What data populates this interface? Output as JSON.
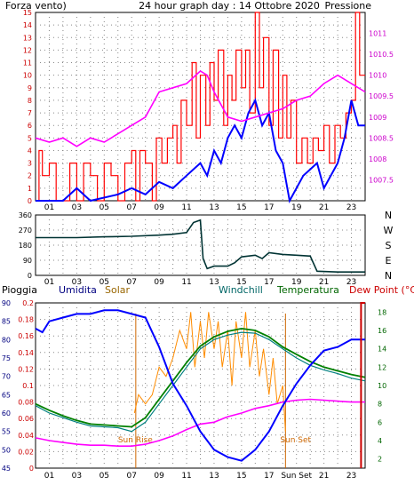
{
  "header": {
    "left_label": "Forza vento)",
    "title": "24 hour graph day : 14 Ottobre 2020",
    "right_label": "Pressione"
  },
  "bottom_header": {
    "pioggia": "Pioggia",
    "umidita": "Umidita",
    "solar": "Solar",
    "windchill": "Windchill",
    "temperatura": "Temperatura",
    "dewpoint": "Dew Point (°C)"
  },
  "colors": {
    "wind": "#ff0000",
    "gust_avg": "#0000ff",
    "pressure": "#ff00ff",
    "direction": "#003333",
    "humidity": "#0000ff",
    "solar": "#ff8c00",
    "windchill": "#008080",
    "temperature": "#008000",
    "dewpoint": "#ff00ff",
    "rain": "#cc0000",
    "sun": "#cc6600",
    "axis_red": "#cc0000",
    "axis_blue": "#000080",
    "axis_green": "#006600"
  },
  "chart_data": [
    {
      "type": "line",
      "ylim": [
        0,
        15
      ],
      "y_ticks": [
        "0",
        "1",
        "2",
        "3",
        "4",
        "5",
        "6",
        "7",
        "8",
        "9",
        "10",
        "11",
        "12",
        "13",
        "14",
        "15"
      ],
      "y2lim": [
        1007,
        1011.5
      ],
      "y2_ticks": [
        "1007.5",
        "1008",
        "1008.5",
        "1009",
        "1009.5",
        "1010",
        "1010.5",
        "1011"
      ],
      "x_ticks": [
        "01",
        "03",
        "05",
        "07",
        "09",
        "11",
        "13",
        "15",
        "17",
        "19",
        "21",
        "23"
      ],
      "xlim": [
        0,
        24
      ],
      "grid": true,
      "wind_max": [
        [
          0,
          0
        ],
        [
          0.25,
          4
        ],
        [
          0.5,
          2
        ],
        [
          1,
          3
        ],
        [
          1.5,
          0
        ],
        [
          2.5,
          3
        ],
        [
          3,
          0
        ],
        [
          3.5,
          3
        ],
        [
          4,
          2
        ],
        [
          4.5,
          0
        ],
        [
          5,
          3
        ],
        [
          5.5,
          2
        ],
        [
          6,
          0
        ],
        [
          6.5,
          3
        ],
        [
          7,
          4
        ],
        [
          7.3,
          0
        ],
        [
          7.6,
          4
        ],
        [
          8,
          3
        ],
        [
          8.5,
          0
        ],
        [
          8.8,
          5
        ],
        [
          9.2,
          3
        ],
        [
          9.6,
          5
        ],
        [
          10,
          6
        ],
        [
          10.3,
          3
        ],
        [
          10.6,
          8
        ],
        [
          11,
          6
        ],
        [
          11.4,
          11
        ],
        [
          11.7,
          5
        ],
        [
          12,
          10
        ],
        [
          12.4,
          6
        ],
        [
          12.7,
          11
        ],
        [
          13,
          8
        ],
        [
          13.3,
          12
        ],
        [
          13.7,
          6
        ],
        [
          14,
          10
        ],
        [
          14.3,
          8
        ],
        [
          14.6,
          12
        ],
        [
          15,
          9
        ],
        [
          15.3,
          12
        ],
        [
          15.6,
          7
        ],
        [
          16,
          15
        ],
        [
          16.3,
          9
        ],
        [
          16.6,
          13
        ],
        [
          17,
          6
        ],
        [
          17.3,
          12
        ],
        [
          17.7,
          5
        ],
        [
          18,
          10
        ],
        [
          18.3,
          5
        ],
        [
          18.6,
          8
        ],
        [
          19,
          3
        ],
        [
          19.4,
          5
        ],
        [
          19.8,
          3
        ],
        [
          20.2,
          5
        ],
        [
          20.6,
          4
        ],
        [
          21,
          6
        ],
        [
          21.4,
          3
        ],
        [
          21.8,
          6
        ],
        [
          22.2,
          5
        ],
        [
          22.6,
          7
        ],
        [
          23,
          8
        ],
        [
          23.3,
          15
        ],
        [
          23.6,
          10
        ],
        [
          24,
          10
        ]
      ],
      "wind_avg": [
        [
          0,
          0
        ],
        [
          2,
          0
        ],
        [
          3,
          1
        ],
        [
          4,
          0
        ],
        [
          6,
          0.5
        ],
        [
          7,
          1
        ],
        [
          8,
          0.5
        ],
        [
          9,
          1.5
        ],
        [
          10,
          1
        ],
        [
          11,
          2
        ],
        [
          12,
          3
        ],
        [
          12.5,
          2
        ],
        [
          13,
          4
        ],
        [
          13.5,
          3
        ],
        [
          14,
          5
        ],
        [
          14.5,
          6
        ],
        [
          15,
          5
        ],
        [
          15.5,
          7
        ],
        [
          16,
          8
        ],
        [
          16.5,
          6
        ],
        [
          17,
          7
        ],
        [
          17.5,
          4
        ],
        [
          18,
          3
        ],
        [
          18.5,
          0
        ],
        [
          19.5,
          2
        ],
        [
          20.5,
          3
        ],
        [
          21,
          1
        ],
        [
          22,
          3
        ],
        [
          22.5,
          5
        ],
        [
          23,
          8
        ],
        [
          23.5,
          6
        ],
        [
          24,
          6
        ]
      ],
      "pressure": [
        [
          0,
          1008.5
        ],
        [
          1,
          1008.4
        ],
        [
          2,
          1008.5
        ],
        [
          3,
          1008.3
        ],
        [
          4,
          1008.5
        ],
        [
          5,
          1008.4
        ],
        [
          6,
          1008.6
        ],
        [
          7,
          1008.8
        ],
        [
          8,
          1009.0
        ],
        [
          9,
          1009.6
        ],
        [
          10,
          1009.7
        ],
        [
          11,
          1009.8
        ],
        [
          12,
          1010.1
        ],
        [
          12.5,
          1010.0
        ],
        [
          13,
          1009.6
        ],
        [
          14,
          1009.0
        ],
        [
          15,
          1008.9
        ],
        [
          16,
          1009.0
        ],
        [
          17,
          1009.1
        ],
        [
          18,
          1009.2
        ],
        [
          19,
          1009.4
        ],
        [
          20,
          1009.5
        ],
        [
          21,
          1009.8
        ],
        [
          22,
          1010.0
        ],
        [
          23,
          1009.8
        ],
        [
          24,
          1009.6
        ]
      ]
    },
    {
      "type": "line",
      "ylim": [
        0,
        360
      ],
      "y_ticks": [
        "0",
        "90",
        "180",
        "270",
        "360"
      ],
      "right_labels": [
        "N",
        "W",
        "S",
        "E",
        "N"
      ],
      "x_ticks": [
        "01",
        "03",
        "05",
        "07",
        "09",
        "11",
        "13",
        "15",
        "17",
        "19",
        "21",
        "23"
      ],
      "xlim": [
        0,
        24
      ],
      "grid": true,
      "direction": [
        [
          0,
          225
        ],
        [
          3,
          225
        ],
        [
          5,
          230
        ],
        [
          7,
          233
        ],
        [
          9,
          240
        ],
        [
          10,
          245
        ],
        [
          11,
          255
        ],
        [
          11.5,
          315
        ],
        [
          12,
          330
        ],
        [
          12.2,
          100
        ],
        [
          12.5,
          40
        ],
        [
          13,
          55
        ],
        [
          14,
          55
        ],
        [
          14.5,
          75
        ],
        [
          15,
          110
        ],
        [
          16,
          120
        ],
        [
          16.5,
          100
        ],
        [
          17,
          135
        ],
        [
          18,
          125
        ],
        [
          19,
          120
        ],
        [
          20,
          115
        ],
        [
          20.5,
          25
        ],
        [
          22,
          20
        ],
        [
          24,
          20
        ]
      ]
    },
    {
      "type": "line",
      "y_left_rain": {
        "lim": [
          0,
          0.2
        ],
        "ticks": [
          "0",
          "0.02",
          "0.04",
          "0.06",
          "0.08",
          "0.1",
          "0.12",
          "0.14",
          "0.16",
          "0.18",
          "0.2"
        ]
      },
      "y_left_hum": {
        "lim": [
          45,
          90
        ],
        "ticks": [
          "45",
          "50",
          "55",
          "60",
          "65",
          "70",
          "75",
          "80",
          "85",
          "90"
        ]
      },
      "y_right_temp": {
        "lim": [
          1,
          19
        ],
        "ticks": [
          "2",
          "4",
          "6",
          "8",
          "10",
          "12",
          "14",
          "16",
          "18"
        ]
      },
      "x_ticks": [
        "01",
        "03",
        "05",
        "07",
        "09",
        "11",
        "13",
        "15",
        "17",
        "Sun Set",
        "21",
        "23"
      ],
      "xlim": [
        0,
        24
      ],
      "grid": true,
      "sun_rise_label": "Sun Rise",
      "sun_set_label": "Sun Set",
      "sun_rise": 7.3,
      "sun_set": 18.2,
      "humidity": [
        [
          0,
          83
        ],
        [
          0.5,
          82
        ],
        [
          1,
          85
        ],
        [
          2,
          86
        ],
        [
          3,
          87
        ],
        [
          4,
          87
        ],
        [
          5,
          88
        ],
        [
          6,
          88
        ],
        [
          7,
          87
        ],
        [
          8,
          86
        ],
        [
          9,
          78
        ],
        [
          10,
          68
        ],
        [
          11,
          62
        ],
        [
          12,
          55
        ],
        [
          13,
          50
        ],
        [
          14,
          48
        ],
        [
          15,
          47
        ],
        [
          16,
          50
        ],
        [
          17,
          55
        ],
        [
          18,
          62
        ],
        [
          19,
          68
        ],
        [
          20,
          73
        ],
        [
          21,
          77
        ],
        [
          22,
          78
        ],
        [
          23,
          80
        ],
        [
          24,
          80
        ]
      ],
      "solar": [
        [
          7.2,
          7
        ],
        [
          7.5,
          9
        ],
        [
          8,
          8
        ],
        [
          8.5,
          9
        ],
        [
          9,
          12
        ],
        [
          9.5,
          11
        ],
        [
          10,
          13
        ],
        [
          10.5,
          16
        ],
        [
          11,
          14
        ],
        [
          11.3,
          18
        ],
        [
          11.6,
          12
        ],
        [
          12,
          17
        ],
        [
          12.3,
          13
        ],
        [
          12.6,
          18
        ],
        [
          13,
          14
        ],
        [
          13.3,
          17
        ],
        [
          13.6,
          12
        ],
        [
          14,
          16
        ],
        [
          14.3,
          10
        ],
        [
          14.6,
          17
        ],
        [
          15,
          13
        ],
        [
          15.3,
          18
        ],
        [
          15.6,
          12
        ],
        [
          16,
          16
        ],
        [
          16.3,
          11
        ],
        [
          16.6,
          14
        ],
        [
          17,
          9
        ],
        [
          17.3,
          13
        ],
        [
          17.6,
          8
        ],
        [
          18,
          10
        ],
        [
          18.2,
          5
        ]
      ],
      "windchill": [
        [
          0,
          7.8
        ],
        [
          1,
          7
        ],
        [
          2,
          6.5
        ],
        [
          3,
          6
        ],
        [
          4,
          5.6
        ],
        [
          5,
          5.5
        ],
        [
          6,
          5.4
        ],
        [
          7,
          5
        ],
        [
          8,
          6
        ],
        [
          9,
          8
        ],
        [
          10,
          10
        ],
        [
          11,
          12
        ],
        [
          12,
          14
        ],
        [
          13,
          15
        ],
        [
          14,
          15.5
        ],
        [
          15,
          15.8
        ],
        [
          16,
          15.7
        ],
        [
          17,
          15
        ],
        [
          18,
          14
        ],
        [
          19,
          13
        ],
        [
          20,
          12.2
        ],
        [
          21,
          11.7
        ],
        [
          22,
          11.3
        ],
        [
          23,
          10.8
        ],
        [
          24,
          10.5
        ]
      ],
      "temperature": [
        [
          0,
          8
        ],
        [
          1,
          7.3
        ],
        [
          2,
          6.7
        ],
        [
          3,
          6.2
        ],
        [
          4,
          5.8
        ],
        [
          5,
          5.7
        ],
        [
          6,
          5.6
        ],
        [
          7,
          5.5
        ],
        [
          8,
          6.5
        ],
        [
          9,
          8.5
        ],
        [
          10,
          10.5
        ],
        [
          11,
          12.5
        ],
        [
          12,
          14.3
        ],
        [
          13,
          15.3
        ],
        [
          14,
          15.9
        ],
        [
          15,
          16.2
        ],
        [
          16,
          16
        ],
        [
          17,
          15.3
        ],
        [
          18,
          14.2
        ],
        [
          19,
          13.4
        ],
        [
          20,
          12.6
        ],
        [
          21,
          12
        ],
        [
          22,
          11.6
        ],
        [
          23,
          11.2
        ],
        [
          24,
          10.9
        ]
      ],
      "dewpoint": [
        [
          0,
          4.3
        ],
        [
          1,
          4
        ],
        [
          2,
          3.8
        ],
        [
          3,
          3.6
        ],
        [
          4,
          3.5
        ],
        [
          5,
          3.5
        ],
        [
          6,
          3.4
        ],
        [
          7,
          3.4
        ],
        [
          8,
          3.6
        ],
        [
          9,
          4
        ],
        [
          10,
          4.5
        ],
        [
          11,
          5.2
        ],
        [
          12,
          5.8
        ],
        [
          13,
          6
        ],
        [
          14,
          6.6
        ],
        [
          15,
          7
        ],
        [
          16,
          7.5
        ],
        [
          17,
          7.8
        ],
        [
          18,
          8.2
        ],
        [
          19,
          8.4
        ],
        [
          20,
          8.5
        ],
        [
          21,
          8.4
        ],
        [
          22,
          8.3
        ],
        [
          23,
          8.2
        ],
        [
          24,
          8.2
        ]
      ],
      "rain": [
        [
          23.7,
          0
        ],
        [
          23.7,
          0.2
        ],
        [
          24,
          0.2
        ]
      ]
    }
  ]
}
